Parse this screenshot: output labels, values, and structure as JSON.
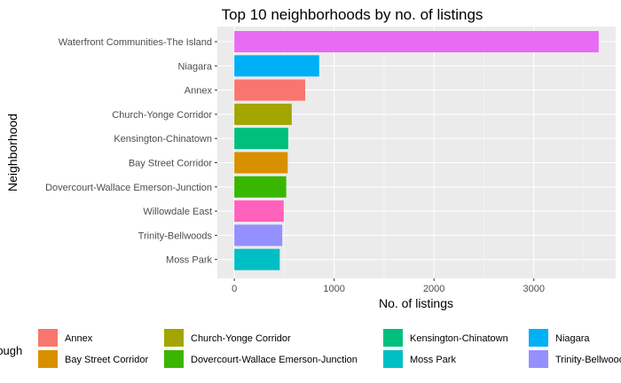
{
  "chart_data": {
    "type": "bar",
    "orientation": "horizontal",
    "title": "Top 10 neighborhoods by no. of listings",
    "xlabel": "No. of listings",
    "ylabel": "Neighborhood",
    "xlim": [
      -170,
      3820
    ],
    "x_ticks": [
      0,
      1000,
      2000,
      3000
    ],
    "x_tick_labels": [
      "0",
      "1000",
      "2000",
      "3000"
    ],
    "grid": true,
    "legend_position": "bottom",
    "legend_title": "rough",
    "categories": [
      "Waterfront Communities-The Island",
      "Niagara",
      "Annex",
      "Church-Yonge Corridor",
      "Kensington-Chinatown",
      "Bay Street Corridor",
      "Dovercourt-Wallace Emerson-Junction",
      "Willowdale East",
      "Trinity-Bellwoods",
      "Moss Park"
    ],
    "values": [
      3650,
      850,
      710,
      575,
      540,
      535,
      520,
      495,
      480,
      455
    ],
    "colors": [
      "#E76BF3",
      "#00B0F6",
      "#F8766D",
      "#A3A500",
      "#00BF7D",
      "#D89000",
      "#39B600",
      "#FF62BC",
      "#9590FF",
      "#00BFC4"
    ],
    "legend": [
      {
        "label": "Annex",
        "color": "#F8766D"
      },
      {
        "label": "Bay Street Corridor",
        "color": "#D89000"
      },
      {
        "label": "Church-Yonge Corridor",
        "color": "#A3A500"
      },
      {
        "label": "Dovercourt-Wallace Emerson-Junction",
        "color": "#39B600"
      },
      {
        "label": "Kensington-Chinatown",
        "color": "#00BF7D"
      },
      {
        "label": "Moss Park",
        "color": "#00BFC4"
      },
      {
        "label": "Niagara",
        "color": "#00B0F6"
      },
      {
        "label": "Trinity-Bellwoods",
        "color": "#9590FF"
      }
    ]
  }
}
